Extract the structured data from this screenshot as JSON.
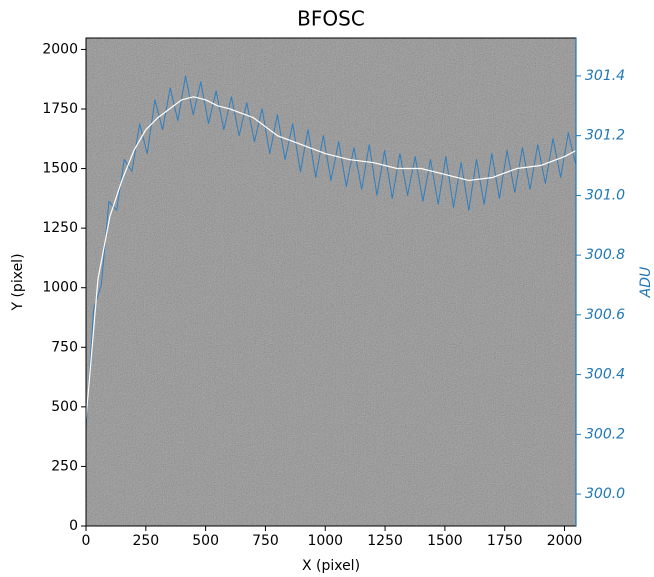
{
  "chart_data": {
    "type": "line",
    "title": "BFOSC",
    "xlabel": "X (pixel)",
    "ylabel": "Y (pixel)",
    "y2label": "ADU",
    "xlim": [
      0,
      2048
    ],
    "ylim": [
      0,
      2048
    ],
    "y2lim": [
      299.893,
      301.527
    ],
    "xticks": [
      0,
      250,
      500,
      750,
      1000,
      1250,
      1500,
      1750,
      2000
    ],
    "yticks": [
      0,
      250,
      500,
      750,
      1000,
      1250,
      1500,
      1750,
      2000
    ],
    "y2ticks": [
      {
        "value": 300.0,
        "label": "300.0"
      },
      300.2,
      300.4,
      300.6,
      300.8,
      {
        "value": 301.0,
        "label": "301.0"
      },
      301.2,
      301.4
    ],
    "y2color": "#1f77b4",
    "series": [
      {
        "color": "#2f7fbf",
        "axis": "y2",
        "width": 1,
        "x": [
          0,
          32,
          64,
          96,
          128,
          160,
          192,
          224,
          256,
          288,
          320,
          352,
          384,
          416,
          448,
          480,
          512,
          544,
          576,
          608,
          640,
          672,
          704,
          736,
          768,
          800,
          832,
          864,
          896,
          928,
          960,
          992,
          1024,
          1056,
          1088,
          1120,
          1152,
          1184,
          1216,
          1248,
          1280,
          1312,
          1344,
          1376,
          1408,
          1440,
          1472,
          1504,
          1536,
          1568,
          1600,
          1632,
          1664,
          1696,
          1728,
          1760,
          1792,
          1824,
          1856,
          1888,
          1920,
          1952,
          1984,
          2016,
          2048
        ],
        "values": [
          300.22,
          300.62,
          300.7,
          300.98,
          300.95,
          301.12,
          301.08,
          301.24,
          301.14,
          301.32,
          301.22,
          301.36,
          301.25,
          301.4,
          301.27,
          301.38,
          301.24,
          301.35,
          301.22,
          301.33,
          301.2,
          301.31,
          301.18,
          301.29,
          301.14,
          301.27,
          301.12,
          301.24,
          301.08,
          301.22,
          301.06,
          301.2,
          301.05,
          301.18,
          301.03,
          301.16,
          301.02,
          301.17,
          301.0,
          301.15,
          300.99,
          301.14,
          301.0,
          301.13,
          300.98,
          301.12,
          300.97,
          301.13,
          300.96,
          301.11,
          300.95,
          301.12,
          300.97,
          301.14,
          300.99,
          301.15,
          301.01,
          301.16,
          301.02,
          301.17,
          301.04,
          301.19,
          301.06,
          301.21,
          301.1
        ]
      },
      {
        "color": "#ffffff",
        "axis": "y2",
        "width": 1.2,
        "x": [
          0,
          50,
          100,
          150,
          200,
          250,
          300,
          350,
          400,
          450,
          500,
          550,
          600,
          700,
          800,
          900,
          1000,
          1100,
          1200,
          1300,
          1400,
          1500,
          1600,
          1700,
          1800,
          1900,
          2000,
          2048
        ],
        "values": [
          300.25,
          300.72,
          300.93,
          301.05,
          301.15,
          301.22,
          301.26,
          301.29,
          301.32,
          301.33,
          301.32,
          301.3,
          301.29,
          301.26,
          301.2,
          301.17,
          301.14,
          301.12,
          301.11,
          301.09,
          301.09,
          301.07,
          301.05,
          301.06,
          301.09,
          301.1,
          301.13,
          301.15
        ]
      }
    ]
  }
}
